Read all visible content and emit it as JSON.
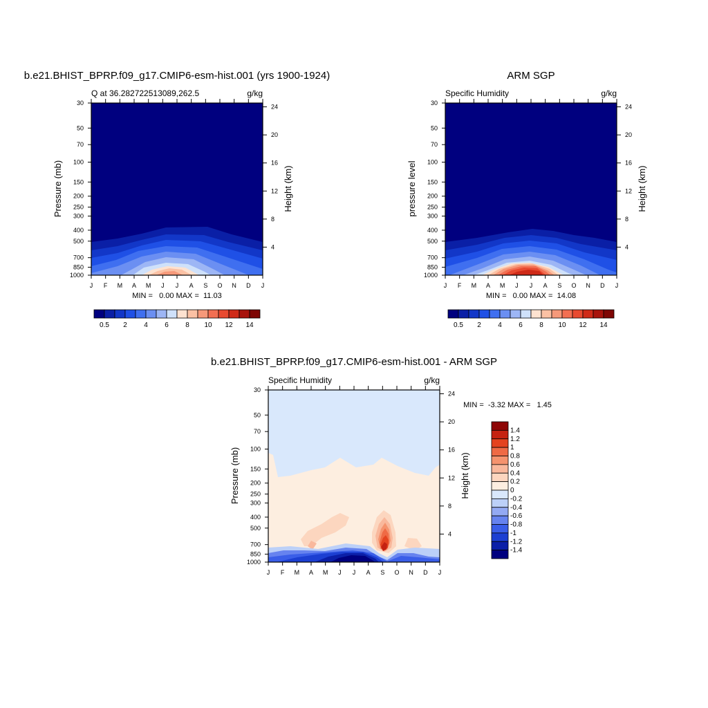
{
  "months": [
    "J",
    "F",
    "M",
    "A",
    "M",
    "J",
    "J",
    "A",
    "S",
    "O",
    "N",
    "D",
    "J"
  ],
  "pressure_ticks": [
    30,
    50,
    70,
    100,
    150,
    200,
    250,
    300,
    400,
    500,
    700,
    850,
    1000
  ],
  "height_ticks": [
    24,
    20,
    16,
    12,
    8,
    4
  ],
  "colors": {
    "seq": [
      "#00007f",
      "#0a1fa6",
      "#1237c8",
      "#1f50e6",
      "#3f6ff0",
      "#6b8ff2",
      "#9db6f5",
      "#cfe1fa",
      "#fde2d0",
      "#fbc1a4",
      "#f6997a",
      "#f26f52",
      "#e84a30",
      "#cf2a18",
      "#a8130c",
      "#7e0604"
    ],
    "div": [
      "#00007f",
      "#0b1fa8",
      "#1c3fd2",
      "#3a5ee8",
      "#6683ef",
      "#93a9f3",
      "#bcd0f8",
      "#d9e8fc",
      "#fdeee0",
      "#fcd6bf",
      "#f9b89c",
      "#f5936e",
      "#ef6a45",
      "#e4431f",
      "#c52211",
      "#8e0605"
    ]
  },
  "panels": {
    "model": {
      "title": "b.e21.BHIST_BPRP.f09_g17.CMIP6-esm-hist.001 (yrs 1900-1924)",
      "left_label": "Q at 36.282722513089,262.5",
      "right_label": "g/kg",
      "y_label": "Pressure (mb)",
      "y2_label": "Height (km)",
      "minmax": "MIN =   0.00 MAX =  11.03"
    },
    "obs": {
      "title": "ARM SGP",
      "left_label": "Specific Humidity",
      "right_label": "g/kg",
      "y_label": "pressure level",
      "y2_label": "Height (km)",
      "minmax": "MIN =   0.00 MAX =  14.08"
    },
    "diff": {
      "title": "b.e21.BHIST_BPRP.f09_g17.CMIP6-esm-hist.001 - ARM SGP",
      "left_label": "Specific Humidity",
      "right_label": "g/kg",
      "y_label": "Pressure (mb)",
      "y2_label": "Height (km)",
      "minmax": "MIN =  -3.32 MAX =   1.45"
    }
  },
  "colorbar_h_labels": [
    "0.5",
    "2",
    "4",
    "6",
    "8",
    "10",
    "12",
    "14"
  ],
  "colorbar_v_labels": [
    "1.4",
    "1.2",
    "1",
    "0.8",
    "0.6",
    "0.4",
    "0.2",
    "0",
    "-0.2",
    "-0.4",
    "-0.6",
    "-0.8",
    "-1",
    "-1.2",
    "-1.4"
  ],
  "chart_data": [
    {
      "type": "heatmap",
      "title": "b.e21.BHIST_BPRP.f09_g17.CMIP6-esm-hist.001 (yrs 1900-1924)",
      "variable": "Q at 36.282722513089,262.5",
      "units": "g/kg",
      "x": [
        "J",
        "F",
        "M",
        "A",
        "M",
        "J",
        "J",
        "A",
        "S",
        "O",
        "N",
        "D",
        "J"
      ],
      "ylabel": "Pressure (mb)",
      "y2label": "Height (km)",
      "ylim": [
        1000,
        30
      ],
      "y_scale": "log",
      "min": 0.0,
      "max": 11.03,
      "surface_peak_month": "Jul",
      "contour_levels": [
        0.5,
        1,
        2,
        3,
        4,
        5,
        6,
        7,
        8,
        9,
        10,
        11,
        12,
        13,
        14
      ]
    },
    {
      "type": "heatmap",
      "title": "ARM SGP",
      "variable": "Specific Humidity",
      "units": "g/kg",
      "x": [
        "J",
        "F",
        "M",
        "A",
        "M",
        "J",
        "J",
        "A",
        "S",
        "O",
        "N",
        "D",
        "J"
      ],
      "ylabel": "pressure level",
      "y2label": "Height (km)",
      "ylim": [
        1000,
        30
      ],
      "y_scale": "log",
      "min": 0.0,
      "max": 14.08,
      "surface_peak_month": "Jul",
      "contour_levels": [
        0.5,
        1,
        2,
        3,
        4,
        5,
        6,
        7,
        8,
        9,
        10,
        11,
        12,
        13,
        14
      ]
    },
    {
      "type": "heatmap",
      "title": "b.e21.BHIST_BPRP.f09_g17.CMIP6-esm-hist.001 - ARM SGP",
      "variable": "Specific Humidity",
      "units": "g/kg",
      "x": [
        "J",
        "F",
        "M",
        "A",
        "M",
        "J",
        "J",
        "A",
        "S",
        "O",
        "N",
        "D",
        "J"
      ],
      "ylabel": "Pressure (mb)",
      "y2label": "Height (km)",
      "ylim": [
        1000,
        30
      ],
      "y_scale": "log",
      "min": -3.32,
      "max": 1.45,
      "contour_levels": [
        -1.4,
        -1.2,
        -1,
        -0.8,
        -0.6,
        -0.4,
        -0.2,
        0,
        0.2,
        0.4,
        0.6,
        0.8,
        1,
        1.2,
        1.4
      ]
    }
  ]
}
